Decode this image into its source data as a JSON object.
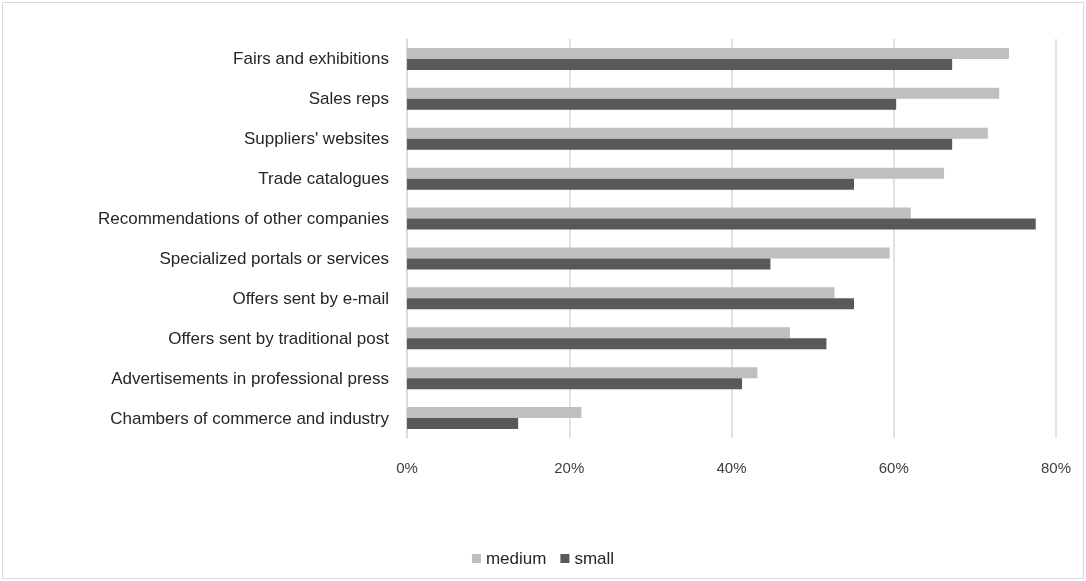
{
  "chart_data": {
    "type": "bar",
    "orientation": "horizontal",
    "categories": [
      "Fairs and exhibitions",
      "Sales reps",
      "Suppliers' websites",
      "Trade catalogues",
      "Recommendations of other companies",
      "Specialized portals or services",
      "Offers sent by e-mail",
      "Offers sent by traditional post",
      "Advertisements in professional press",
      "Chambers of commerce and industry"
    ],
    "series": [
      {
        "name": "medium",
        "color": "#bfbfbf",
        "values": [
          74.2,
          73.0,
          71.6,
          66.2,
          62.1,
          59.5,
          52.7,
          47.2,
          43.2,
          21.5
        ]
      },
      {
        "name": "small",
        "color": "#595959",
        "values": [
          67.2,
          60.3,
          67.2,
          55.1,
          77.5,
          44.8,
          55.1,
          51.7,
          41.3,
          13.7
        ]
      }
    ],
    "xlim": [
      0,
      80
    ],
    "xticks": [
      {
        "value": 0,
        "label": "0%"
      },
      {
        "value": 20,
        "label": "20%"
      },
      {
        "value": 40,
        "label": "40%"
      },
      {
        "value": 60,
        "label": "60%"
      },
      {
        "value": 80,
        "label": "80%"
      }
    ],
    "grid": "x",
    "legend": "bottom"
  }
}
